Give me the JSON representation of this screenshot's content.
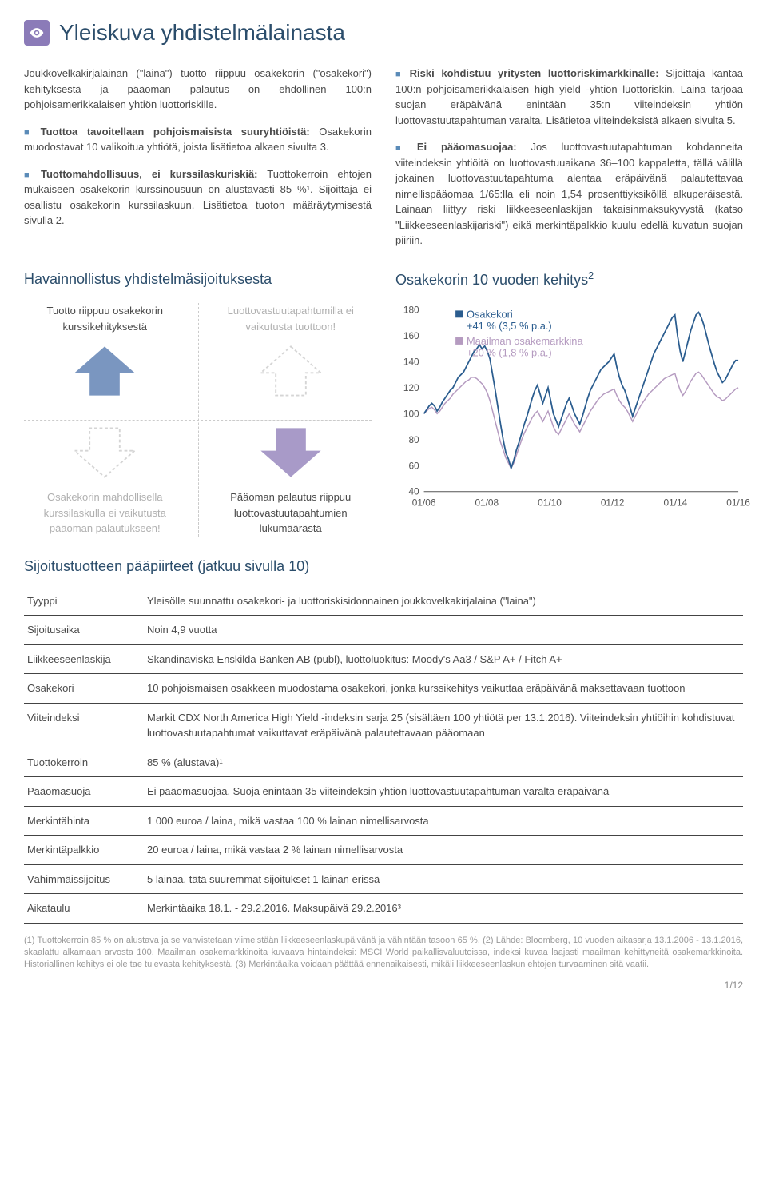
{
  "header": {
    "title": "Yleiskuva yhdistelmälainasta",
    "icon": "eye"
  },
  "intro": "Joukkovelkakirjalainan (\"laina\") tuotto riippuu osakekorin (\"osakekori\") kehityksestä ja pääoman palautus on ehdollinen 100:n pohjoisamerikkalaisen yhtiön luottoriskille.",
  "bullets": [
    {
      "bold": "Tuottoa tavoitellaan pohjoismaisista suuryhtiöistä:",
      "text": " Osakekorin muodostavat 10 valikoitua yhtiötä, joista lisätietoa alkaen sivulta 3."
    },
    {
      "bold": "Tuottomahdollisuus, ei kurssilaskuriskiä:",
      "text": " Tuottokerroin ehtojen mukaiseen osakekorin kurssinousuun on alustavasti 85 %¹. Sijoittaja ei osallistu osakekorin kurssilaskuun. Lisätietoa tuoton määräytymisestä sivulla 2."
    },
    {
      "bold": "Riski kohdistuu yritysten luottoriskimarkkinalle:",
      "text": " Sijoittaja kantaa 100:n pohjoisamerikkalaisen high yield -yhtiön luottoriskin. Laina tarjoaa suojan eräpäivänä enintään 35:n viiteindeksin yhtiön luottovastuutapahtuman varalta. Lisätietoa viiteindeksistä alkaen sivulta 5."
    },
    {
      "bold": "Ei pääomasuojaa:",
      "text": " Jos luottovastuutapahtuman kohdanneita viiteindeksin yhtiöitä on luottovastuuaikana 36–100 kappaletta, tällä välillä jokainen luottovastuutapahtuma alentaa eräpäivänä palautettavaa nimellispääomaa 1/65:lla eli noin 1,54 prosenttiyksiköllä alkuperäisestä. Lainaan liittyy riski liikkeeseenlaskijan takaisinmaksukyvystä (katso \"Liikkeeseenlaskijariski\") eikä merkintäpalkkio kuulu edellä kuvatun suojan piiriin."
    }
  ],
  "illustration": {
    "title": "Havainnollistus yhdistelmäsijoituksesta",
    "cells": [
      {
        "text": "Tuotto riippuu osakekorin kurssikehityksestä",
        "grey": false,
        "arrow": "up",
        "color": "#7a96c0"
      },
      {
        "text": "Luottovastuutapahtumilla ei vaikutusta tuottoon!",
        "grey": true,
        "arrow": "up-outline",
        "color": "#d5d5d5"
      },
      {
        "text": "Osakekorin mahdollisella kurssilaskulla ei vaikutusta pääoman palautukseen!",
        "grey": true,
        "arrow": "down-outline",
        "color": "#d5d5d5"
      },
      {
        "text": "Pääoman palautus riippuu luottovastuutapahtumien lukumäärästä",
        "grey": false,
        "arrow": "down",
        "color": "#a89ac8"
      }
    ]
  },
  "chart": {
    "title": "Osakekorin 10 vuoden kehitys",
    "title_sup": "2",
    "legend": [
      {
        "color": "#2b5d8f",
        "name": "Osakekori",
        "ret": "+41 % (3,5 % p.a.)"
      },
      {
        "color": "#b59bc0",
        "name": "Maailman osakemarkkina",
        "ret": "+20 % (1,8 % p.a.)"
      }
    ],
    "ylim": [
      40,
      180
    ],
    "yticks": [
      40,
      60,
      80,
      100,
      120,
      140,
      160,
      180
    ],
    "xticks": [
      "01/06",
      "01/08",
      "01/10",
      "01/12",
      "01/14",
      "01/16"
    ],
    "grid_color": "#e0e0e0",
    "background_color": "#ffffff",
    "series1_color": "#2b5d8f",
    "series2_color": "#b59bc0",
    "series1": [
      100,
      103,
      106,
      108,
      106,
      102,
      105,
      109,
      112,
      115,
      118,
      120,
      124,
      128,
      130,
      132,
      136,
      140,
      144,
      148,
      150,
      153,
      150,
      152,
      148,
      142,
      130,
      118,
      105,
      92,
      80,
      70,
      65,
      58,
      64,
      72,
      78,
      85,
      92,
      98,
      105,
      112,
      118,
      122,
      115,
      108,
      114,
      120,
      110,
      100,
      95,
      90,
      96,
      102,
      108,
      112,
      106,
      100,
      96,
      92,
      98,
      105,
      112,
      118,
      122,
      126,
      130,
      134,
      136,
      138,
      140,
      143,
      146,
      136,
      128,
      122,
      118,
      112,
      105,
      98,
      104,
      110,
      116,
      122,
      128,
      134,
      140,
      146,
      150,
      154,
      158,
      162,
      166,
      170,
      174,
      176,
      160,
      148,
      140,
      148,
      156,
      164,
      170,
      176,
      178,
      174,
      168,
      160,
      152,
      145,
      138,
      132,
      128,
      124,
      126,
      130,
      134,
      138,
      141,
      141
    ],
    "series2": [
      100,
      102,
      104,
      105,
      103,
      100,
      102,
      105,
      108,
      110,
      112,
      115,
      117,
      119,
      121,
      123,
      125,
      126,
      128,
      128,
      127,
      125,
      123,
      120,
      116,
      110,
      102,
      94,
      86,
      78,
      72,
      66,
      62,
      58,
      62,
      68,
      74,
      80,
      85,
      89,
      93,
      97,
      100,
      102,
      98,
      94,
      98,
      102,
      96,
      90,
      86,
      84,
      88,
      92,
      96,
      100,
      96,
      92,
      89,
      86,
      90,
      94,
      98,
      102,
      105,
      108,
      111,
      113,
      115,
      116,
      117,
      118,
      119,
      114,
      110,
      107,
      105,
      102,
      98,
      94,
      98,
      102,
      106,
      109,
      112,
      115,
      117,
      119,
      121,
      123,
      125,
      127,
      128,
      129,
      130,
      131,
      124,
      118,
      114,
      117,
      121,
      125,
      128,
      131,
      132,
      130,
      127,
      124,
      121,
      118,
      115,
      113,
      112,
      110,
      111,
      113,
      115,
      117,
      119,
      120
    ]
  },
  "table": {
    "title": "Sijoitustuotteen pääpiirteet (jatkuu sivulla 10)",
    "rows": [
      {
        "k": "Tyyppi",
        "v": "Yleisölle suunnattu osakekori- ja luottoriskisidonnainen joukkovelkakirjalaina (\"laina\")"
      },
      {
        "k": "Sijoitusaika",
        "v": "Noin 4,9 vuotta"
      },
      {
        "k": "Liikkeeseenlaskija",
        "v": "Skandinaviska Enskilda Banken AB (publ), luottoluokitus: Moody's Aa3 / S&P A+ / Fitch A+"
      },
      {
        "k": "Osakekori",
        "v": "10 pohjoismaisen osakkeen muodostama osakekori, jonka kurssikehitys vaikuttaa eräpäivänä maksettavaan tuottoon"
      },
      {
        "k": "Viiteindeksi",
        "v": "Markit CDX North America High Yield -indeksin sarja 25 (sisältäen 100 yhtiötä per 13.1.2016). Viiteindeksin yhtiöihin kohdistuvat luottovastuutapahtumat vaikuttavat eräpäivänä palautettavaan pääomaan"
      },
      {
        "k": "Tuottokerroin",
        "v": "85 % (alustava)¹"
      },
      {
        "k": "Pääomasuoja",
        "v": "Ei pääomasuojaa. Suoja enintään 35 viiteindeksin yhtiön luottovastuutapahtuman varalta eräpäivänä"
      },
      {
        "k": "Merkintähinta",
        "v": "1 000 euroa / laina, mikä vastaa 100 % lainan nimellisarvosta"
      },
      {
        "k": "Merkintäpalkkio",
        "v": "20 euroa / laina, mikä vastaa 2 % lainan nimellisarvosta"
      },
      {
        "k": "Vähimmäissijoitus",
        "v": "5 lainaa, tätä suuremmat sijoitukset 1 lainan erissä"
      },
      {
        "k": "Aikataulu",
        "v": "Merkintäaika 18.1. - 29.2.2016. Maksupäivä 29.2.2016³"
      }
    ]
  },
  "footnotes": "(1) Tuottokerroin 85 % on alustava ja se vahvistetaan viimeistään liikkeeseenlaskupäivänä ja vähintään tasoon 65 %. (2) Lähde: Bloomberg, 10 vuoden aikasarja 13.1.2006 - 13.1.2016, skaalattu alkamaan arvosta 100. Maailman osakemarkkinoita kuvaava hintaindeksi: MSCI World paikallisvaluutoissa, indeksi kuvaa laajasti maailman kehittyneitä osakemarkkinoita. Historiallinen kehitys ei ole tae tulevasta kehityksestä. (3) Merkintäaika voidaan päättää ennenaikaisesti, mikäli liikkeeseenlaskun ehtojen turvaaminen sitä vaatii.",
  "page": "1/12"
}
